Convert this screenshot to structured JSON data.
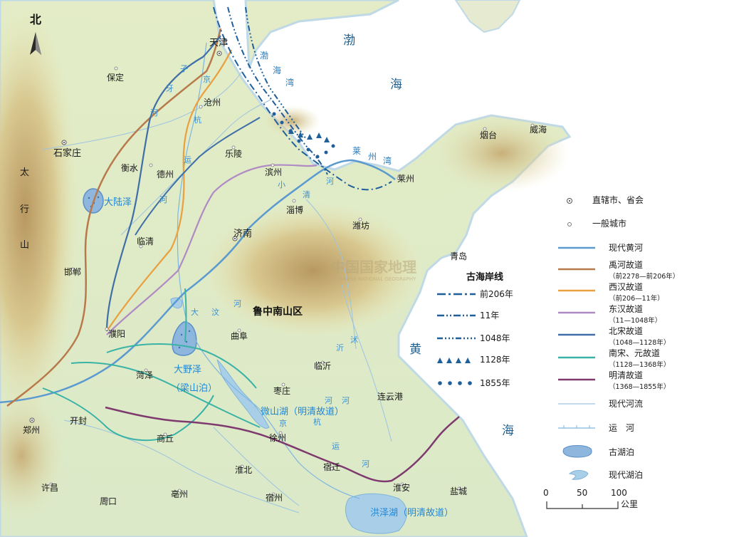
{
  "compass": {
    "label": "北"
  },
  "seas": {
    "bohai_1": "渤",
    "bohai_2": "海",
    "huang_1": "黄",
    "huang_2": "海",
    "bohai_bay": [
      "渤",
      "海",
      "湾"
    ],
    "laizhou_bay": [
      "莱",
      "州",
      "湾"
    ]
  },
  "mountains": {
    "taihang": [
      "太",
      "行",
      "山"
    ],
    "luzhong": "鲁中南山区"
  },
  "cities": {
    "tianjin": "天津",
    "baoding": "保定",
    "cangzhou": "沧州",
    "shijiazhuang": "石家庄",
    "hengshui": "衡水",
    "dezhou": "德州",
    "leling": "乐陵",
    "binzhou": "滨州",
    "zibo": "淄博",
    "weifang": "潍坊",
    "yantai": "烟台",
    "weihai": "威海",
    "laizhou": "莱州",
    "qingdao": "青岛",
    "jinan": "济南",
    "linqing": "临清",
    "handan": "邯郸",
    "puyang": "濮阳",
    "heze": "菏泽",
    "qufu": "曲阜",
    "linyi": "临沂",
    "zaozhuang": "枣庄",
    "lianyungang": "连云港",
    "zhengzhou": "郑州",
    "kaifeng": "开封",
    "shangqiu": "商丘",
    "xuzhou": "徐州",
    "suqian": "宿迁",
    "huaibei": "淮北",
    "xuchang": "许昌",
    "zhoukou": "周口",
    "bozhou": "亳州",
    "suzhou": "宿州",
    "huaian": "淮安",
    "yancheng": "盐城"
  },
  "lakes": {
    "daluze": "大陆泽",
    "dayeze": "大野泽",
    "liangshanpo": "（梁山泊）",
    "weishanhu": "微山湖（明清故道）",
    "hongzehu": "洪泽湖（明清故道）"
  },
  "rivers": {
    "ziya": [
      "子",
      "牙",
      "河"
    ],
    "jinghang_north": [
      "京",
      "杭",
      "运",
      "河"
    ],
    "xiaoqing": [
      "小",
      "清",
      "河"
    ],
    "dawen": [
      "大",
      "汶",
      "河"
    ],
    "yi": [
      "沂"
    ],
    "shu": [
      "沭"
    ],
    "jinghang_south": [
      "京",
      "杭",
      "运",
      "河"
    ],
    "h1": "河",
    "h2": "河"
  },
  "watermark": {
    "cn": "中国国家地理",
    "en": "CHINESE NATIONAL GEOGRAPHY"
  },
  "coastline_legend": {
    "title": "古海岸线",
    "items": [
      {
        "label": "前206年"
      },
      {
        "label": "11年"
      },
      {
        "label": "1048年"
      },
      {
        "label": "1128年"
      },
      {
        "label": "1855年"
      }
    ]
  },
  "legend": {
    "capital": "直辖市、省会",
    "city": "一般城市",
    "modern_yellow_river": "现代黄河",
    "yu": "禹河故道",
    "yu_period": "（前2278—前206年）",
    "xihan": "西汉故道",
    "xihan_period": "（前206—11年）",
    "donghan": "东汉故道",
    "donghan_period": "（11—1048年）",
    "beisong": "北宋故道",
    "beisong_period": "（1048—1128年）",
    "nansong": "南宋、元故道",
    "nansong_period": "（1128—1368年）",
    "mingqing": "明清故道",
    "mingqing_period": "（1368—1855年）",
    "modern_river": "现代河流",
    "canal": "运　河",
    "ancient_lake": "古湖泊",
    "modern_lake": "现代湖泊"
  },
  "scale": {
    "t0": "0",
    "t50": "50",
    "t100": "100",
    "unit": "公里"
  },
  "colors": {
    "modern_yellow_river": "#5b9ad0",
    "yu": "#b87a4a",
    "xihan": "#e8a040",
    "donghan": "#b08ac4",
    "beisong": "#3f6fa6",
    "nansong": "#3ab3a6",
    "mingqing": "#7e3a6e",
    "sea": "#ffffff",
    "land": "#e8efcf"
  }
}
